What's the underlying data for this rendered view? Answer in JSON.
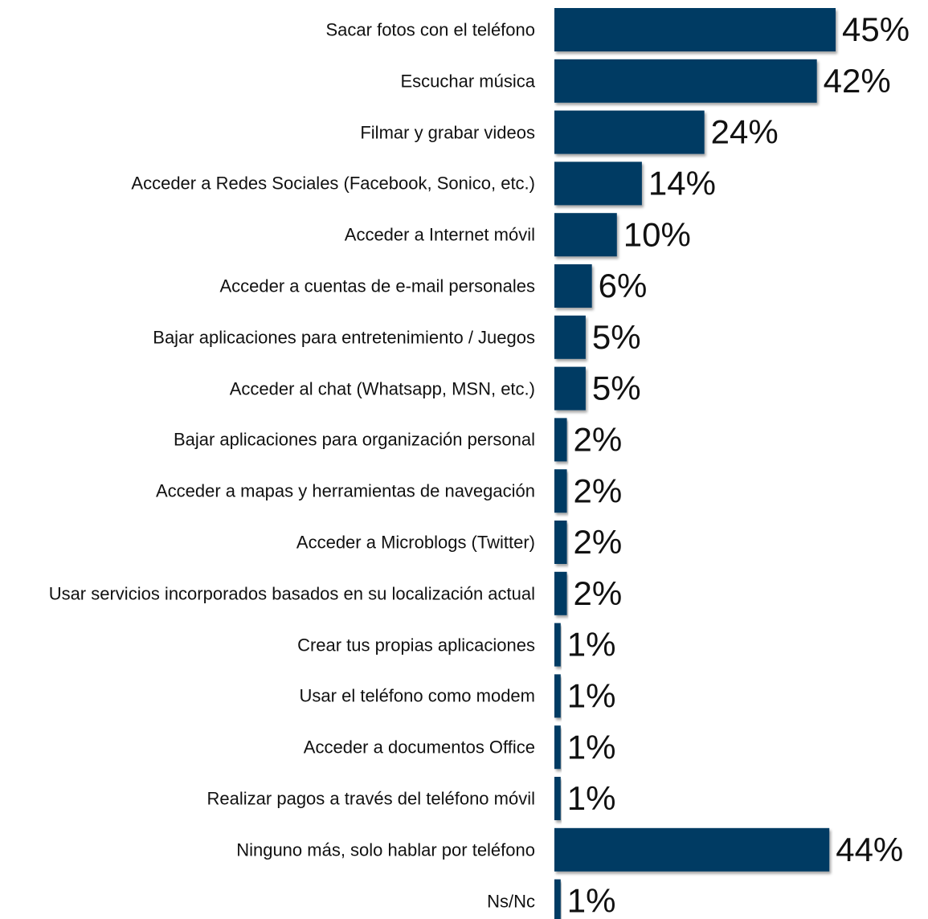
{
  "chart_data": {
    "type": "bar",
    "orientation": "horizontal",
    "color": "#003a63",
    "categories": [
      "Sacar fotos con el teléfono",
      "Escuchar música",
      "Filmar y grabar videos",
      "Acceder a Redes Sociales (Facebook, Sonico, etc.)",
      "Acceder a Internet móvil",
      "Acceder a cuentas de e-mail personales",
      "Bajar aplicaciones para entretenimiento / Juegos",
      "Acceder al chat (Whatsapp, MSN, etc.)",
      "Bajar aplicaciones para organización personal",
      "Acceder a mapas y herramientas de navegación",
      "Acceder a Microblogs (Twitter)",
      "Usar servicios incorporados basados en su localización actual",
      "Crear tus propias aplicaciones",
      "Usar el teléfono como modem",
      "Acceder a documentos Office",
      "Realizar pagos a través del teléfono móvil",
      "Ninguno más, solo hablar por teléfono",
      "Ns/Nc"
    ],
    "values": [
      45,
      42,
      24,
      14,
      10,
      6,
      5,
      5,
      2,
      2,
      2,
      2,
      1,
      1,
      1,
      1,
      44,
      1
    ],
    "value_labels": [
      "45%",
      "42%",
      "24%",
      "14%",
      "10%",
      "6%",
      "5%",
      "5%",
      "2%",
      "2%",
      "2%",
      "2%",
      "1%",
      "1%",
      "1%",
      "1%",
      "44%",
      "1%"
    ]
  }
}
